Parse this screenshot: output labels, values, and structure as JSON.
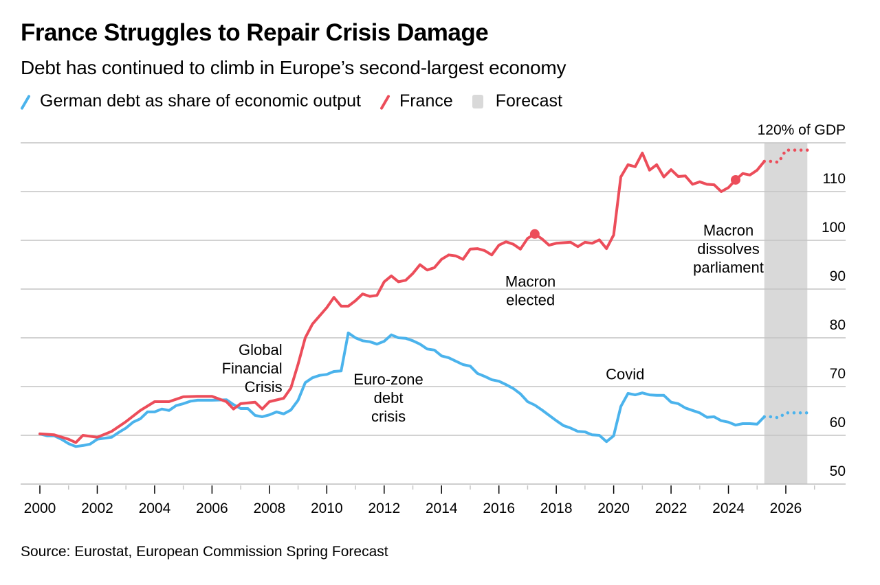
{
  "header": {
    "title": "France Struggles to Repair Crisis Damage",
    "subtitle": "Debt has continued to climb in Europe’s second-largest economy"
  },
  "legend": [
    {
      "label": "German debt as share of economic output",
      "type": "line",
      "color": "#4bb3ec"
    },
    {
      "label": "France",
      "type": "line",
      "color": "#ec4d5a"
    },
    {
      "label": "Forecast",
      "type": "box",
      "color": "#d9d9d9"
    }
  ],
  "footer": {
    "source": "Source: Eurostat, European Commission Spring Forecast"
  },
  "chart_data": {
    "type": "line",
    "title": "France Struggles to Repair Crisis Damage",
    "subtitle": "Debt has continued to climb in Europe’s second-largest economy",
    "xlabel": "",
    "ylabel": "% of GDP",
    "y_unit_label": "120% of GDP",
    "xlim": [
      2000,
      2027
    ],
    "ylim": [
      50,
      120
    ],
    "x_ticks": [
      2000,
      2002,
      2004,
      2006,
      2008,
      2010,
      2012,
      2014,
      2016,
      2018,
      2020,
      2022,
      2024,
      2026
    ],
    "y_ticks": [
      50,
      60,
      70,
      80,
      90,
      100,
      110,
      120
    ],
    "y_tick_labels": [
      "50",
      "60",
      "70",
      "80",
      "90",
      "100",
      "110",
      "120% of GDP"
    ],
    "grid": true,
    "legend_position": "top-left",
    "forecast_range": [
      2025.25,
      2026.75
    ],
    "series": [
      {
        "name": "German debt as share of economic output",
        "color": "#4bb3ec",
        "x": [
          2000,
          2000.25,
          2000.5,
          2000.75,
          2001,
          2001.25,
          2001.5,
          2001.75,
          2002,
          2002.5,
          2002.75,
          2003,
          2003.25,
          2003.5,
          2003.75,
          2004,
          2004.25,
          2004.5,
          2004.75,
          2005,
          2005.25,
          2005.5,
          2006,
          2006.5,
          2006.75,
          2007,
          2007.25,
          2007.5,
          2007.75,
          2008,
          2008.25,
          2008.5,
          2008.75,
          2009,
          2009.25,
          2009.5,
          2009.75,
          2010,
          2010.25,
          2010.5,
          2010.75,
          2011,
          2011.25,
          2011.5,
          2011.75,
          2012,
          2012.25,
          2012.5,
          2012.75,
          2013,
          2013.25,
          2013.5,
          2013.75,
          2014,
          2014.25,
          2014.5,
          2014.75,
          2015,
          2015.25,
          2015.5,
          2015.75,
          2016,
          2016.25,
          2016.5,
          2016.75,
          2017,
          2017.25,
          2017.5,
          2017.75,
          2018,
          2018.25,
          2018.5,
          2018.75,
          2019,
          2019.25,
          2019.5,
          2019.75,
          2020,
          2020.25,
          2020.5,
          2020.75,
          2021,
          2021.25,
          2021.5,
          2021.75,
          2022,
          2022.25,
          2022.5,
          2022.75,
          2023,
          2023.25,
          2023.5,
          2023.75,
          2024,
          2024.25,
          2024.5,
          2024.75,
          2025,
          2025.25
        ],
        "values": [
          60.3,
          59.9,
          59.9,
          59.2,
          58.3,
          57.7,
          57.9,
          58.2,
          59.2,
          59.6,
          60.6,
          61.5,
          62.7,
          63.4,
          64.8,
          64.8,
          65.4,
          65.1,
          66.1,
          66.5,
          67.0,
          67.2,
          67.2,
          67.3,
          66.3,
          65.5,
          65.5,
          64.1,
          63.8,
          64.2,
          64.8,
          64.4,
          65.2,
          67.2,
          70.8,
          71.8,
          72.3,
          72.5,
          73.1,
          73.2,
          81.0,
          80.0,
          79.4,
          79.2,
          78.7,
          79.3,
          80.6,
          80.0,
          79.9,
          79.4,
          78.7,
          77.7,
          77.5,
          76.3,
          75.9,
          75.2,
          74.5,
          74.2,
          72.7,
          72.1,
          71.4,
          71.1,
          70.4,
          69.6,
          68.5,
          66.9,
          66.2,
          65.2,
          64.1,
          63.0,
          62.0,
          61.5,
          60.8,
          60.7,
          60.1,
          60.0,
          58.7,
          59.9,
          65.9,
          68.6,
          68.3,
          68.7,
          68.3,
          68.2,
          68.2,
          66.8,
          66.5,
          65.6,
          65.1,
          64.6,
          63.7,
          63.8,
          63.0,
          62.7,
          62.1,
          62.4,
          62.4,
          62.3,
          63.8
        ],
        "forecast": {
          "x": [
            2025.25,
            2025.5,
            2025.75,
            2026,
            2026.25,
            2026.5,
            2026.75
          ],
          "values": [
            63.8,
            63.8,
            63.6,
            64.6,
            64.6,
            64.6,
            64.6
          ]
        }
      },
      {
        "name": "France",
        "color": "#ec4d5a",
        "x": [
          2000,
          2000.5,
          2001,
          2001.25,
          2001.5,
          2002,
          2002.5,
          2003,
          2003.5,
          2004,
          2004.5,
          2005,
          2005.5,
          2006,
          2006.5,
          2006.75,
          2007,
          2007.5,
          2007.75,
          2008,
          2008.5,
          2008.75,
          2009,
          2009.25,
          2009.5,
          2010,
          2010.25,
          2010.5,
          2010.75,
          2011,
          2011.25,
          2011.5,
          2011.75,
          2012,
          2012.25,
          2012.5,
          2012.75,
          2013,
          2013.25,
          2013.5,
          2013.75,
          2014,
          2014.25,
          2014.5,
          2014.75,
          2015,
          2015.25,
          2015.5,
          2015.75,
          2016,
          2016.25,
          2016.5,
          2016.75,
          2017,
          2017.25,
          2017.5,
          2017.75,
          2018,
          2018.5,
          2018.75,
          2019,
          2019.25,
          2019.5,
          2019.75,
          2020,
          2020.25,
          2020.5,
          2020.75,
          2021,
          2021.25,
          2021.5,
          2021.75,
          2022,
          2022.25,
          2022.5,
          2022.75,
          2023,
          2023.25,
          2023.5,
          2023.75,
          2024,
          2024.25,
          2024.5,
          2024.75,
          2025,
          2025.25
        ],
        "values": [
          60.3,
          60.1,
          59.2,
          58.5,
          60.0,
          59.6,
          60.8,
          62.8,
          65.1,
          66.9,
          66.9,
          67.9,
          68.0,
          68.0,
          66.9,
          65.4,
          66.5,
          66.8,
          65.4,
          66.9,
          67.6,
          69.7,
          74.6,
          80.0,
          82.8,
          86.2,
          88.3,
          86.5,
          86.5,
          87.6,
          89.0,
          88.5,
          88.7,
          91.5,
          92.7,
          91.5,
          91.8,
          93.2,
          95.0,
          93.9,
          94.4,
          96.1,
          97.0,
          96.8,
          96.1,
          98.2,
          98.3,
          97.9,
          97.0,
          99.0,
          99.7,
          99.2,
          98.2,
          100.4,
          101.3,
          100.3,
          99.0,
          99.4,
          99.6,
          98.7,
          99.6,
          99.4,
          100.1,
          98.3,
          101.1,
          113.0,
          115.5,
          115.1,
          117.9,
          114.4,
          115.5,
          113.0,
          114.5,
          113.1,
          113.2,
          111.5,
          112.0,
          111.5,
          111.4,
          110.0,
          110.8,
          112.4,
          113.7,
          113.4,
          114.4,
          116.2
        ],
        "forecast": {
          "x": [
            2025.25,
            2025.5,
            2025.75,
            2026,
            2026.25,
            2026.5,
            2026.75
          ],
          "values": [
            116.2,
            116.2,
            116.0,
            118.5,
            118.5,
            118.5,
            118.5
          ]
        }
      }
    ],
    "annotations": [
      {
        "id": "gfc",
        "lines": [
          "Global",
          "Financial",
          "Crisis"
        ],
        "x": 2008.45,
        "y": 76.5,
        "align": "end"
      },
      {
        "id": "euro",
        "lines": [
          "Euro-zone",
          "debt",
          "crisis"
        ],
        "x": 2012.15,
        "y": 70.4,
        "align": "middle"
      },
      {
        "id": "macron-elected",
        "lines": [
          "Macron",
          "elected"
        ],
        "x": 2017.1,
        "y": 90.5,
        "align": "middle"
      },
      {
        "id": "macron-dissolves",
        "lines": [
          "Macron",
          "dissolves",
          "parliament"
        ],
        "x": 2024.0,
        "y": 101.0,
        "align": "middle"
      },
      {
        "id": "covid",
        "lines": [
          "Covid"
        ],
        "x": 2020.4,
        "y": 71.5,
        "align": "middle"
      }
    ],
    "markers": [
      {
        "series": "France",
        "x": 2017.25,
        "value": 101.3
      },
      {
        "series": "France",
        "x": 2024.25,
        "value": 112.4
      }
    ]
  }
}
